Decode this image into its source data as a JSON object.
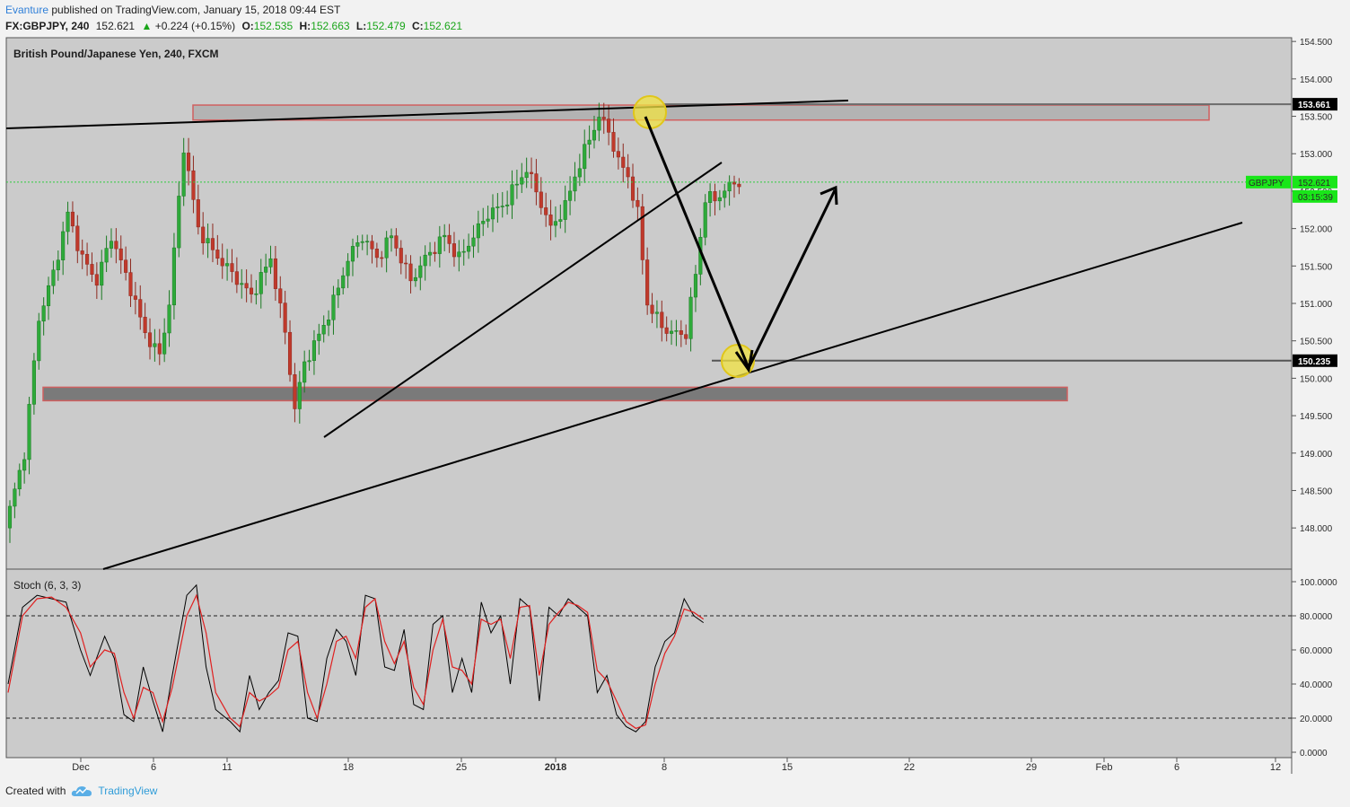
{
  "header": {
    "author": "Evanture",
    "published_text": "published on TradingView.com, January 15, 2018 09:44 EST",
    "symbol": "FX:GBPJPY, 240",
    "last": "152.621",
    "change": "+0.224 (+0.15%)",
    "change_arrow": "▲",
    "o_label": "O:",
    "o_value": "152.535",
    "h_label": "H:",
    "h_value": "152.663",
    "l_label": "L:",
    "l_value": "152.479",
    "c_label": "C:",
    "c_value": "152.621"
  },
  "chart_data": {
    "type": "candlestick",
    "title": "British Pound/Japanese Yen, 240, FXCM",
    "price_ticks": [
      "154.500",
      "154.000",
      "153.500",
      "153.000",
      "152.500",
      "152.000",
      "151.500",
      "151.000",
      "150.500",
      "150.000",
      "149.500",
      "149.000",
      "148.500",
      "148.000"
    ],
    "ylim": [
      147.45,
      154.55
    ],
    "x_ticks": [
      "Dec",
      "6",
      "11",
      "18",
      "25",
      "2018",
      "8",
      "15",
      "22",
      "29",
      "Feb",
      "6",
      "12"
    ],
    "price_labels": {
      "resistance": "153.661",
      "current_symbol": "GBPJPY",
      "current": "152.621",
      "countdown": "03:15:39",
      "support": "150.235"
    },
    "zones": [
      {
        "name": "resistance-zone",
        "from": 153.45,
        "to": 153.65
      },
      {
        "name": "support-zone",
        "from": 149.7,
        "to": 149.88
      }
    ],
    "price_path": [
      [
        0,
        148.0
      ],
      [
        4,
        149.0
      ],
      [
        7,
        150.8
      ],
      [
        10,
        151.4
      ],
      [
        13,
        152.2
      ],
      [
        16,
        151.6
      ],
      [
        19,
        151.3
      ],
      [
        22,
        151.9
      ],
      [
        26,
        151.2
      ],
      [
        29,
        150.6
      ],
      [
        32,
        150.3
      ],
      [
        34,
        151.0
      ],
      [
        37,
        153.1
      ],
      [
        40,
        152.0
      ],
      [
        43,
        151.7
      ],
      [
        47,
        151.4
      ],
      [
        51,
        151.1
      ],
      [
        55,
        151.6
      ],
      [
        58,
        150.6
      ],
      [
        60,
        149.6
      ],
      [
        62,
        150.2
      ],
      [
        66,
        150.7
      ],
      [
        69,
        151.2
      ],
      [
        71,
        151.6
      ],
      [
        74,
        151.9
      ],
      [
        77,
        151.6
      ],
      [
        80,
        151.9
      ],
      [
        84,
        151.3
      ],
      [
        87,
        151.6
      ],
      [
        91,
        151.9
      ],
      [
        94,
        151.6
      ],
      [
        97,
        151.9
      ],
      [
        100,
        152.2
      ],
      [
        103,
        152.3
      ],
      [
        106,
        152.6
      ],
      [
        108,
        152.8
      ],
      [
        110,
        152.5
      ],
      [
        113,
        152.0
      ],
      [
        116,
        152.3
      ],
      [
        118,
        152.7
      ],
      [
        121,
        153.2
      ],
      [
        123,
        153.5
      ],
      [
        125,
        153.3
      ],
      [
        127,
        152.9
      ],
      [
        129,
        152.7
      ],
      [
        131,
        152.2
      ],
      [
        133,
        151.0
      ],
      [
        136,
        150.7
      ],
      [
        138,
        150.6
      ],
      [
        141,
        150.6
      ],
      [
        143,
        151.4
      ],
      [
        145,
        152.4
      ],
      [
        147,
        152.4
      ],
      [
        149,
        152.5
      ],
      [
        151,
        152.62
      ]
    ],
    "stochastic": {
      "title": "Stoch (6, 3, 3)",
      "ticks": [
        "100.0000",
        "80.0000",
        "60.0000",
        "40.0000",
        "20.0000",
        "0.0000"
      ],
      "levels": [
        80,
        20
      ],
      "k": [
        [
          0,
          40
        ],
        [
          3,
          85
        ],
        [
          6,
          92
        ],
        [
          9,
          90
        ],
        [
          12,
          88
        ],
        [
          15,
          60
        ],
        [
          17,
          45
        ],
        [
          20,
          68
        ],
        [
          22,
          55
        ],
        [
          24,
          22
        ],
        [
          26,
          18
        ],
        [
          28,
          50
        ],
        [
          30,
          30
        ],
        [
          32,
          12
        ],
        [
          34,
          45
        ],
        [
          37,
          92
        ],
        [
          39,
          98
        ],
        [
          41,
          50
        ],
        [
          43,
          25
        ],
        [
          46,
          18
        ],
        [
          48,
          12
        ],
        [
          50,
          45
        ],
        [
          52,
          25
        ],
        [
          54,
          35
        ],
        [
          56,
          42
        ],
        [
          58,
          70
        ],
        [
          60,
          68
        ],
        [
          62,
          20
        ],
        [
          64,
          18
        ],
        [
          66,
          55
        ],
        [
          68,
          72
        ],
        [
          70,
          65
        ],
        [
          72,
          45
        ],
        [
          74,
          92
        ],
        [
          76,
          90
        ],
        [
          78,
          50
        ],
        [
          80,
          48
        ],
        [
          82,
          72
        ],
        [
          84,
          28
        ],
        [
          86,
          25
        ],
        [
          88,
          75
        ],
        [
          90,
          80
        ],
        [
          92,
          35
        ],
        [
          94,
          55
        ],
        [
          96,
          35
        ],
        [
          98,
          88
        ],
        [
          100,
          70
        ],
        [
          102,
          80
        ],
        [
          104,
          40
        ],
        [
          106,
          90
        ],
        [
          108,
          85
        ],
        [
          110,
          30
        ],
        [
          112,
          85
        ],
        [
          114,
          80
        ],
        [
          116,
          90
        ],
        [
          118,
          85
        ],
        [
          120,
          80
        ],
        [
          122,
          35
        ],
        [
          124,
          45
        ],
        [
          126,
          22
        ],
        [
          128,
          15
        ],
        [
          130,
          12
        ],
        [
          132,
          18
        ],
        [
          134,
          50
        ],
        [
          136,
          65
        ],
        [
          138,
          70
        ],
        [
          140,
          90
        ],
        [
          142,
          80
        ],
        [
          144,
          76
        ]
      ],
      "d": [
        [
          0,
          35
        ],
        [
          3,
          80
        ],
        [
          6,
          90
        ],
        [
          9,
          91
        ],
        [
          12,
          85
        ],
        [
          15,
          70
        ],
        [
          17,
          50
        ],
        [
          20,
          60
        ],
        [
          22,
          58
        ],
        [
          24,
          35
        ],
        [
          26,
          20
        ],
        [
          28,
          38
        ],
        [
          30,
          35
        ],
        [
          32,
          18
        ],
        [
          34,
          38
        ],
        [
          37,
          80
        ],
        [
          39,
          92
        ],
        [
          41,
          70
        ],
        [
          43,
          35
        ],
        [
          46,
          20
        ],
        [
          48,
          15
        ],
        [
          50,
          35
        ],
        [
          52,
          30
        ],
        [
          54,
          33
        ],
        [
          56,
          38
        ],
        [
          58,
          60
        ],
        [
          60,
          65
        ],
        [
          62,
          35
        ],
        [
          64,
          20
        ],
        [
          66,
          40
        ],
        [
          68,
          65
        ],
        [
          70,
          68
        ],
        [
          72,
          55
        ],
        [
          74,
          85
        ],
        [
          76,
          90
        ],
        [
          78,
          65
        ],
        [
          80,
          52
        ],
        [
          82,
          65
        ],
        [
          84,
          38
        ],
        [
          86,
          28
        ],
        [
          88,
          60
        ],
        [
          90,
          78
        ],
        [
          92,
          50
        ],
        [
          94,
          48
        ],
        [
          96,
          40
        ],
        [
          98,
          78
        ],
        [
          100,
          75
        ],
        [
          102,
          78
        ],
        [
          104,
          55
        ],
        [
          106,
          85
        ],
        [
          108,
          86
        ],
        [
          110,
          45
        ],
        [
          112,
          75
        ],
        [
          114,
          82
        ],
        [
          116,
          88
        ],
        [
          118,
          86
        ],
        [
          120,
          82
        ],
        [
          122,
          48
        ],
        [
          124,
          42
        ],
        [
          126,
          30
        ],
        [
          128,
          18
        ],
        [
          130,
          14
        ],
        [
          132,
          16
        ],
        [
          134,
          40
        ],
        [
          136,
          58
        ],
        [
          138,
          68
        ],
        [
          140,
          84
        ],
        [
          142,
          82
        ],
        [
          144,
          78
        ]
      ]
    }
  },
  "footer": {
    "created_with": "Created with",
    "brand": "TradingView"
  },
  "colors": {
    "up": "#2eaa3a",
    "down": "#c0392b",
    "pane_bg": "#cbcbcb",
    "accent_label": "#19e619",
    "k_line": "#000000",
    "d_line": "#e02020",
    "highlight": "#f1e341"
  }
}
